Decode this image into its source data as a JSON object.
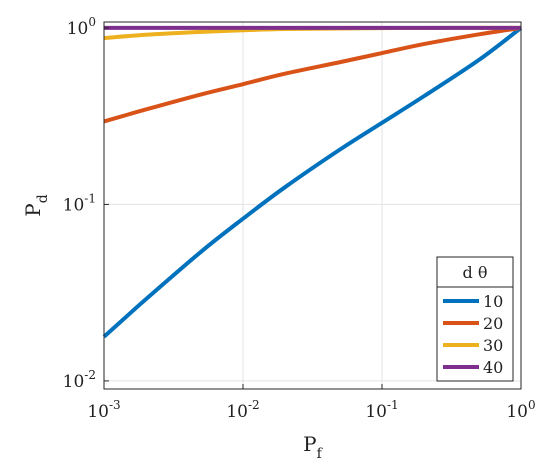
{
  "chart_data": {
    "type": "line",
    "xlabel": {
      "main": "P",
      "sub": "f"
    },
    "ylabel": {
      "main": "P",
      "sub": "d"
    },
    "xscale": "log",
    "yscale": "log",
    "xlim": [
      0.001,
      1
    ],
    "ylim": [
      0.009,
      1.08
    ],
    "grid": true,
    "x_ticks": [
      {
        "value": 0.001,
        "base": "10",
        "exp": "-3"
      },
      {
        "value": 0.01,
        "base": "10",
        "exp": "-2"
      },
      {
        "value": 0.1,
        "base": "10",
        "exp": "-1"
      },
      {
        "value": 1,
        "base": "10",
        "exp": "0"
      }
    ],
    "y_ticks": [
      {
        "value": 0.01,
        "base": "10",
        "exp": "-2"
      },
      {
        "value": 0.1,
        "base": "10",
        "exp": "-1"
      },
      {
        "value": 1,
        "base": "10",
        "exp": "0"
      }
    ],
    "x": [
      0.001,
      0.002,
      0.005,
      0.01,
      0.02,
      0.05,
      0.1,
      0.2,
      0.5,
      1
    ],
    "legend": {
      "title": "d θ",
      "placement": "bottom-right"
    },
    "series": [
      {
        "name": "10",
        "color": "#0072BD",
        "values": [
          0.0178,
          0.029,
          0.054,
          0.083,
          0.125,
          0.205,
          0.29,
          0.41,
          0.66,
          1.0
        ]
      },
      {
        "name": "20",
        "color": "#D95319",
        "values": [
          0.295,
          0.345,
          0.42,
          0.48,
          0.55,
          0.64,
          0.72,
          0.81,
          0.92,
          1.0
        ]
      },
      {
        "name": "30",
        "color": "#EDB120",
        "values": [
          0.875,
          0.915,
          0.95,
          0.97,
          0.985,
          0.993,
          0.997,
          0.999,
          1.0,
          1.0
        ]
      },
      {
        "name": "40",
        "color": "#7E2F8E",
        "values": [
          1.0,
          1.0,
          1.0,
          1.0,
          1.0,
          1.0,
          1.0,
          1.0,
          1.0,
          1.0
        ]
      }
    ]
  }
}
